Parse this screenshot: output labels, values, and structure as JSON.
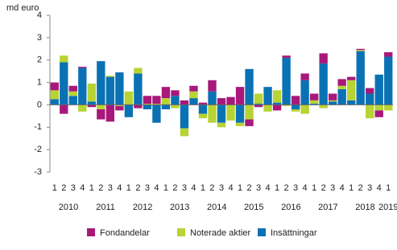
{
  "chart_data": {
    "type": "bar",
    "stacked": true,
    "y_label": "md euro",
    "categories": [
      "1",
      "2",
      "3",
      "4",
      "1",
      "2",
      "3",
      "4",
      "1",
      "2",
      "3",
      "4",
      "1",
      "2",
      "3",
      "4",
      "1",
      "2",
      "3",
      "4",
      "1",
      "2",
      "3",
      "4",
      "1",
      "2",
      "3",
      "4",
      "1",
      "2",
      "3",
      "4",
      "1",
      "2",
      "3",
      "4",
      "1"
    ],
    "years": [
      "2010",
      "2011",
      "2012",
      "2013",
      "2014",
      "2015",
      "2016",
      "2017",
      "2018",
      "2019"
    ],
    "series": [
      {
        "name": "Insättningar",
        "color": "#0a72b4",
        "values": [
          0.25,
          1.9,
          0.4,
          1.65,
          0.15,
          1.95,
          1.25,
          1.45,
          -0.55,
          1.4,
          -0.2,
          -0.8,
          -0.2,
          0.4,
          -1.05,
          0.3,
          -0.4,
          0.6,
          -0.8,
          0.0,
          -0.8,
          1.6,
          0.05,
          0.8,
          0.1,
          2.1,
          -0.2,
          1.1,
          0.05,
          1.85,
          0.15,
          0.7,
          0.2,
          2.4,
          0.5,
          1.35,
          2.15
        ]
      },
      {
        "name": "Noterade aktier",
        "color": "#b7d334",
        "values": [
          0.4,
          0.3,
          0.2,
          -0.3,
          0.8,
          -0.2,
          0.05,
          -0.05,
          0.6,
          0.25,
          0.05,
          0.05,
          0.3,
          -0.15,
          -0.35,
          0.3,
          -0.2,
          -0.8,
          -0.2,
          -0.7,
          -0.15,
          -0.65,
          0.45,
          -0.3,
          0.55,
          -0.05,
          -0.1,
          -0.4,
          0.15,
          -0.15,
          0.05,
          0.15,
          0.9,
          0.05,
          -0.6,
          -0.25,
          -0.25
        ]
      },
      {
        "name": "Fondandelar",
        "color": "#a8187a",
        "values": [
          0.35,
          -0.4,
          0.25,
          0.05,
          -0.1,
          -0.45,
          -0.75,
          -0.2,
          0.0,
          -0.15,
          0.35,
          0.35,
          0.5,
          0.25,
          0.2,
          0.25,
          0.1,
          0.5,
          0.3,
          0.35,
          0.8,
          -0.3,
          -0.1,
          0.0,
          -0.25,
          0.1,
          0.4,
          0.3,
          0.3,
          0.45,
          0.3,
          0.3,
          0.15,
          0.05,
          0.25,
          -0.3,
          0.2
        ]
      }
    ],
    "ylim": [
      -3,
      4
    ],
    "yticks": [
      -3,
      -2,
      -1,
      0,
      1,
      2,
      3,
      4
    ],
    "grid": false,
    "legend": "bottom"
  }
}
